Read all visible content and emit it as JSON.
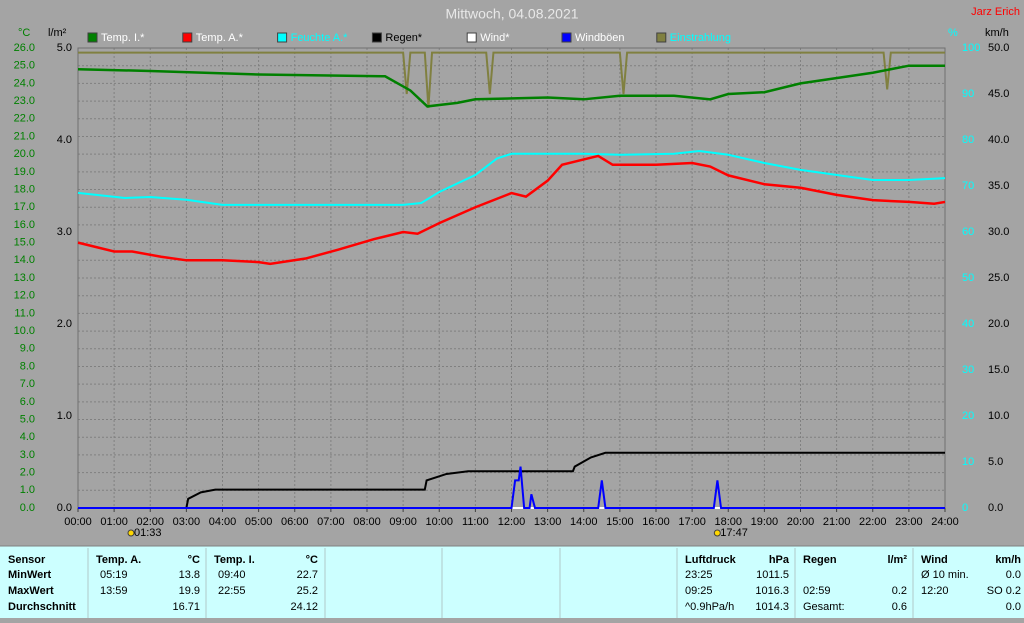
{
  "chart_data": {
    "type": "line",
    "title": "Mittwoch, 04.08.2021",
    "author": "Jarz Erich",
    "y_label": "°C",
    "y2_label": "l/m²",
    "y3_label": "%",
    "y4_label": "km/h",
    "xlim": [
      0,
      24
    ],
    "xticks": [
      {
        "value": 0,
        "label": "00:00"
      },
      {
        "value": 1,
        "label": "01:00"
      },
      {
        "value": 2,
        "label": "02:00"
      },
      {
        "value": 3,
        "label": "03:00"
      },
      {
        "value": 4,
        "label": "04:00"
      },
      {
        "value": 5,
        "label": "05:00"
      },
      {
        "value": 6,
        "label": "06:00"
      },
      {
        "value": 7,
        "label": "07:00"
      },
      {
        "value": 8,
        "label": "08:00"
      },
      {
        "value": 9,
        "label": "09:00"
      },
      {
        "value": 10,
        "label": "10:00"
      },
      {
        "value": 11,
        "label": "11:00"
      },
      {
        "value": 12,
        "label": "12:00"
      },
      {
        "value": 13,
        "label": "13:00"
      },
      {
        "value": 14,
        "label": "14:00"
      },
      {
        "value": 15,
        "label": "15:00"
      },
      {
        "value": 16,
        "label": "16:00"
      },
      {
        "value": 17,
        "label": "17:00"
      },
      {
        "value": 18,
        "label": "18:00"
      },
      {
        "value": 19,
        "label": "19:00"
      },
      {
        "value": 20,
        "label": "20:00"
      },
      {
        "value": 21,
        "label": "21:00"
      },
      {
        "value": 22,
        "label": "22:00"
      },
      {
        "value": 23,
        "label": "23:00"
      },
      {
        "value": 24,
        "label": "24:00"
      }
    ],
    "ylim": [
      0,
      26
    ],
    "yticks": [
      {
        "value": 0,
        "label": "0.0"
      },
      {
        "value": 1,
        "label": "1.0"
      },
      {
        "value": 2,
        "label": "2.0"
      },
      {
        "value": 3,
        "label": "3.0"
      },
      {
        "value": 4,
        "label": "4.0"
      },
      {
        "value": 5,
        "label": "5.0"
      },
      {
        "value": 6,
        "label": "6.0"
      },
      {
        "value": 7,
        "label": "7.0"
      },
      {
        "value": 8,
        "label": "8.0"
      },
      {
        "value": 9,
        "label": "9.0"
      },
      {
        "value": 10,
        "label": "10.0"
      },
      {
        "value": 11,
        "label": "11.0"
      },
      {
        "value": 12,
        "label": "12.0"
      },
      {
        "value": 13,
        "label": "13.0"
      },
      {
        "value": 14,
        "label": "14.0"
      },
      {
        "value": 15,
        "label": "15.0"
      },
      {
        "value": 16,
        "label": "16.0"
      },
      {
        "value": 17,
        "label": "17.0"
      },
      {
        "value": 18,
        "label": "18.0"
      },
      {
        "value": 19,
        "label": "19.0"
      },
      {
        "value": 20,
        "label": "20.0"
      },
      {
        "value": 21,
        "label": "21.0"
      },
      {
        "value": 22,
        "label": "22.0"
      },
      {
        "value": 23,
        "label": "23.0"
      },
      {
        "value": 24,
        "label": "24.0"
      },
      {
        "value": 25,
        "label": "25.0"
      },
      {
        "value": 26,
        "label": "26.0"
      }
    ],
    "y2lim": [
      0,
      5
    ],
    "y2ticks": [
      {
        "value": 0,
        "label": "0.0"
      },
      {
        "value": 1,
        "label": "1.0"
      },
      {
        "value": 2,
        "label": "2.0"
      },
      {
        "value": 3,
        "label": "3.0"
      },
      {
        "value": 4,
        "label": "4.0"
      },
      {
        "value": 5,
        "label": "5.0"
      }
    ],
    "y3lim": [
      0,
      100
    ],
    "y3ticks": [
      0,
      10,
      20,
      30,
      40,
      50,
      60,
      70,
      80,
      90,
      100
    ],
    "y4lim": [
      0,
      50
    ],
    "y4ticks": [
      {
        "value": 0,
        "label": "0.0"
      },
      {
        "value": 5,
        "label": "5.0"
      },
      {
        "value": 10,
        "label": "10.0"
      },
      {
        "value": 15,
        "label": "15.0"
      },
      {
        "value": 20,
        "label": "20.0"
      },
      {
        "value": 25,
        "label": "25.0"
      },
      {
        "value": 30,
        "label": "30.0"
      },
      {
        "value": 35,
        "label": "35.0"
      },
      {
        "value": 40,
        "label": "40.0"
      },
      {
        "value": 45,
        "label": "45.0"
      },
      {
        "value": 50,
        "label": "50.0"
      }
    ],
    "grid": true,
    "annotations": [
      {
        "label": "01:33",
        "x": 1.55
      },
      {
        "label": "17:47",
        "x": 17.78
      }
    ],
    "series": [
      {
        "name": "Temp. I.*",
        "color": "#008000",
        "legend_text_color": "#ffffff",
        "axis": "y",
        "x": [
          0,
          2,
          5,
          8.5,
          9.2,
          9.67,
          10.5,
          11,
          13,
          14,
          15,
          16.5,
          17.5,
          18,
          19,
          20,
          22,
          23,
          24
        ],
        "values": [
          24.8,
          24.7,
          24.5,
          24.4,
          23.6,
          22.7,
          22.9,
          23.1,
          23.2,
          23.1,
          23.3,
          23.3,
          23.1,
          23.4,
          23.5,
          24.0,
          24.6,
          25.0,
          25.0
        ]
      },
      {
        "name": "Temp. A.*",
        "color": "#ff0000",
        "legend_text_color": "#ffffff",
        "axis": "y",
        "x": [
          0,
          1,
          1.5,
          2.3,
          3,
          4,
          5,
          5.32,
          6.3,
          7.2,
          8.2,
          9,
          9.4,
          10,
          11,
          12,
          12.4,
          13,
          13.4,
          14,
          14.4,
          14.8,
          16,
          17,
          17.5,
          18,
          19,
          20,
          21,
          22,
          23,
          23.7,
          24
        ],
        "values": [
          15.0,
          14.5,
          14.5,
          14.2,
          14.0,
          14.0,
          13.9,
          13.8,
          14.1,
          14.6,
          15.2,
          15.6,
          15.5,
          16.1,
          17.0,
          17.8,
          17.6,
          18.5,
          19.4,
          19.7,
          19.9,
          19.4,
          19.4,
          19.5,
          19.3,
          18.8,
          18.3,
          18.1,
          17.7,
          17.4,
          17.3,
          17.2,
          17.3
        ]
      },
      {
        "name": "Feuchte A.*",
        "color": "#00ffff",
        "legend_text_color": "#00ffff",
        "axis": "y3",
        "x": [
          0,
          1.3,
          2,
          3,
          4,
          9,
          9.5,
          10,
          11,
          11.6,
          12,
          14,
          15,
          16.5,
          17.2,
          18,
          19,
          20,
          22,
          23,
          24
        ],
        "values": [
          68.5,
          67.4,
          67.6,
          67.0,
          65.9,
          65.9,
          66.3,
          68.7,
          72.4,
          76.0,
          77.0,
          77.0,
          76.8,
          77.0,
          77.6,
          76.8,
          75.0,
          73.5,
          71.3,
          71.3,
          71.7
        ]
      },
      {
        "name": "Regen*",
        "color": "#000000",
        "legend_text_color": "#000000",
        "axis": "y2",
        "x": [
          0,
          3.0,
          3.05,
          3.4,
          3.8,
          9.6,
          9.65,
          10.2,
          10.8,
          13.7,
          13.75,
          14.2,
          14.6,
          24
        ],
        "values": [
          0,
          0,
          0.1,
          0.17,
          0.2,
          0.2,
          0.3,
          0.37,
          0.4,
          0.4,
          0.45,
          0.55,
          0.6,
          0.6
        ]
      },
      {
        "name": "Wind*",
        "color": "#ffffff",
        "legend_text_color": "#ffffff",
        "axis": "y4",
        "x": [
          0,
          24
        ],
        "values": [
          0,
          0
        ]
      },
      {
        "name": "Windböen",
        "color": "#0000ff",
        "legend_text_color": "#ffffff",
        "axis": "y4",
        "x": [
          0,
          12.0,
          12.1,
          12.2,
          12.25,
          12.35,
          12.5,
          12.55,
          12.65,
          14.4,
          14.5,
          14.6,
          17.6,
          17.7,
          17.8,
          24
        ],
        "values": [
          0,
          0,
          3.0,
          3.0,
          4.5,
          0,
          0,
          1.5,
          0,
          0,
          3.0,
          0,
          0,
          3.0,
          0,
          0
        ]
      },
      {
        "name": "Einstrahlung",
        "color": "#808040",
        "legend_text_color": "#00ffff",
        "axis": "y3",
        "x": [
          0,
          9.0,
          9.1,
          9.2,
          9.6,
          9.7,
          9.8,
          11.3,
          11.4,
          11.5,
          15.0,
          15.1,
          15.2,
          22.3,
          22.4,
          22.5,
          24
        ],
        "values": [
          99,
          99,
          90,
          99,
          99,
          87,
          99,
          99,
          90,
          99,
          99,
          90,
          99,
          99,
          91,
          99,
          99
        ]
      }
    ]
  },
  "table": {
    "sensor": {
      "header": "Sensor",
      "rows": [
        "MinWert",
        "MaxWert",
        "Durchschnitt"
      ]
    },
    "groups": [
      {
        "header": [
          "Temp. A.",
          "°C"
        ],
        "rows": [
          [
            "05:19",
            "13.8"
          ],
          [
            "13:59",
            "19.9"
          ],
          [
            null,
            "16.71"
          ]
        ]
      },
      {
        "header": [
          "Temp. I.",
          "°C"
        ],
        "rows": [
          [
            "09:40",
            "22.7"
          ],
          [
            "22:55",
            "25.2"
          ],
          [
            null,
            "24.12"
          ]
        ]
      },
      {
        "header": [
          "Luftdruck",
          "hPa"
        ],
        "rows": [
          [
            "23:25",
            "1011.5"
          ],
          [
            "09:25",
            "1016.3"
          ],
          [
            "^0.9hPa/h",
            "1014.3"
          ]
        ]
      },
      {
        "header": [
          "Regen",
          "l/m²"
        ],
        "rows": [
          [
            null,
            null
          ],
          [
            "02:59",
            "0.2"
          ],
          [
            "Gesamt:",
            "0.6"
          ]
        ]
      },
      {
        "header": [
          "Wind",
          "km/h"
        ],
        "rows": [
          [
            "Ø 10 min.",
            "0.0"
          ],
          [
            "12:20",
            "SO 0.2"
          ],
          [
            null,
            "0.0"
          ]
        ]
      }
    ]
  }
}
